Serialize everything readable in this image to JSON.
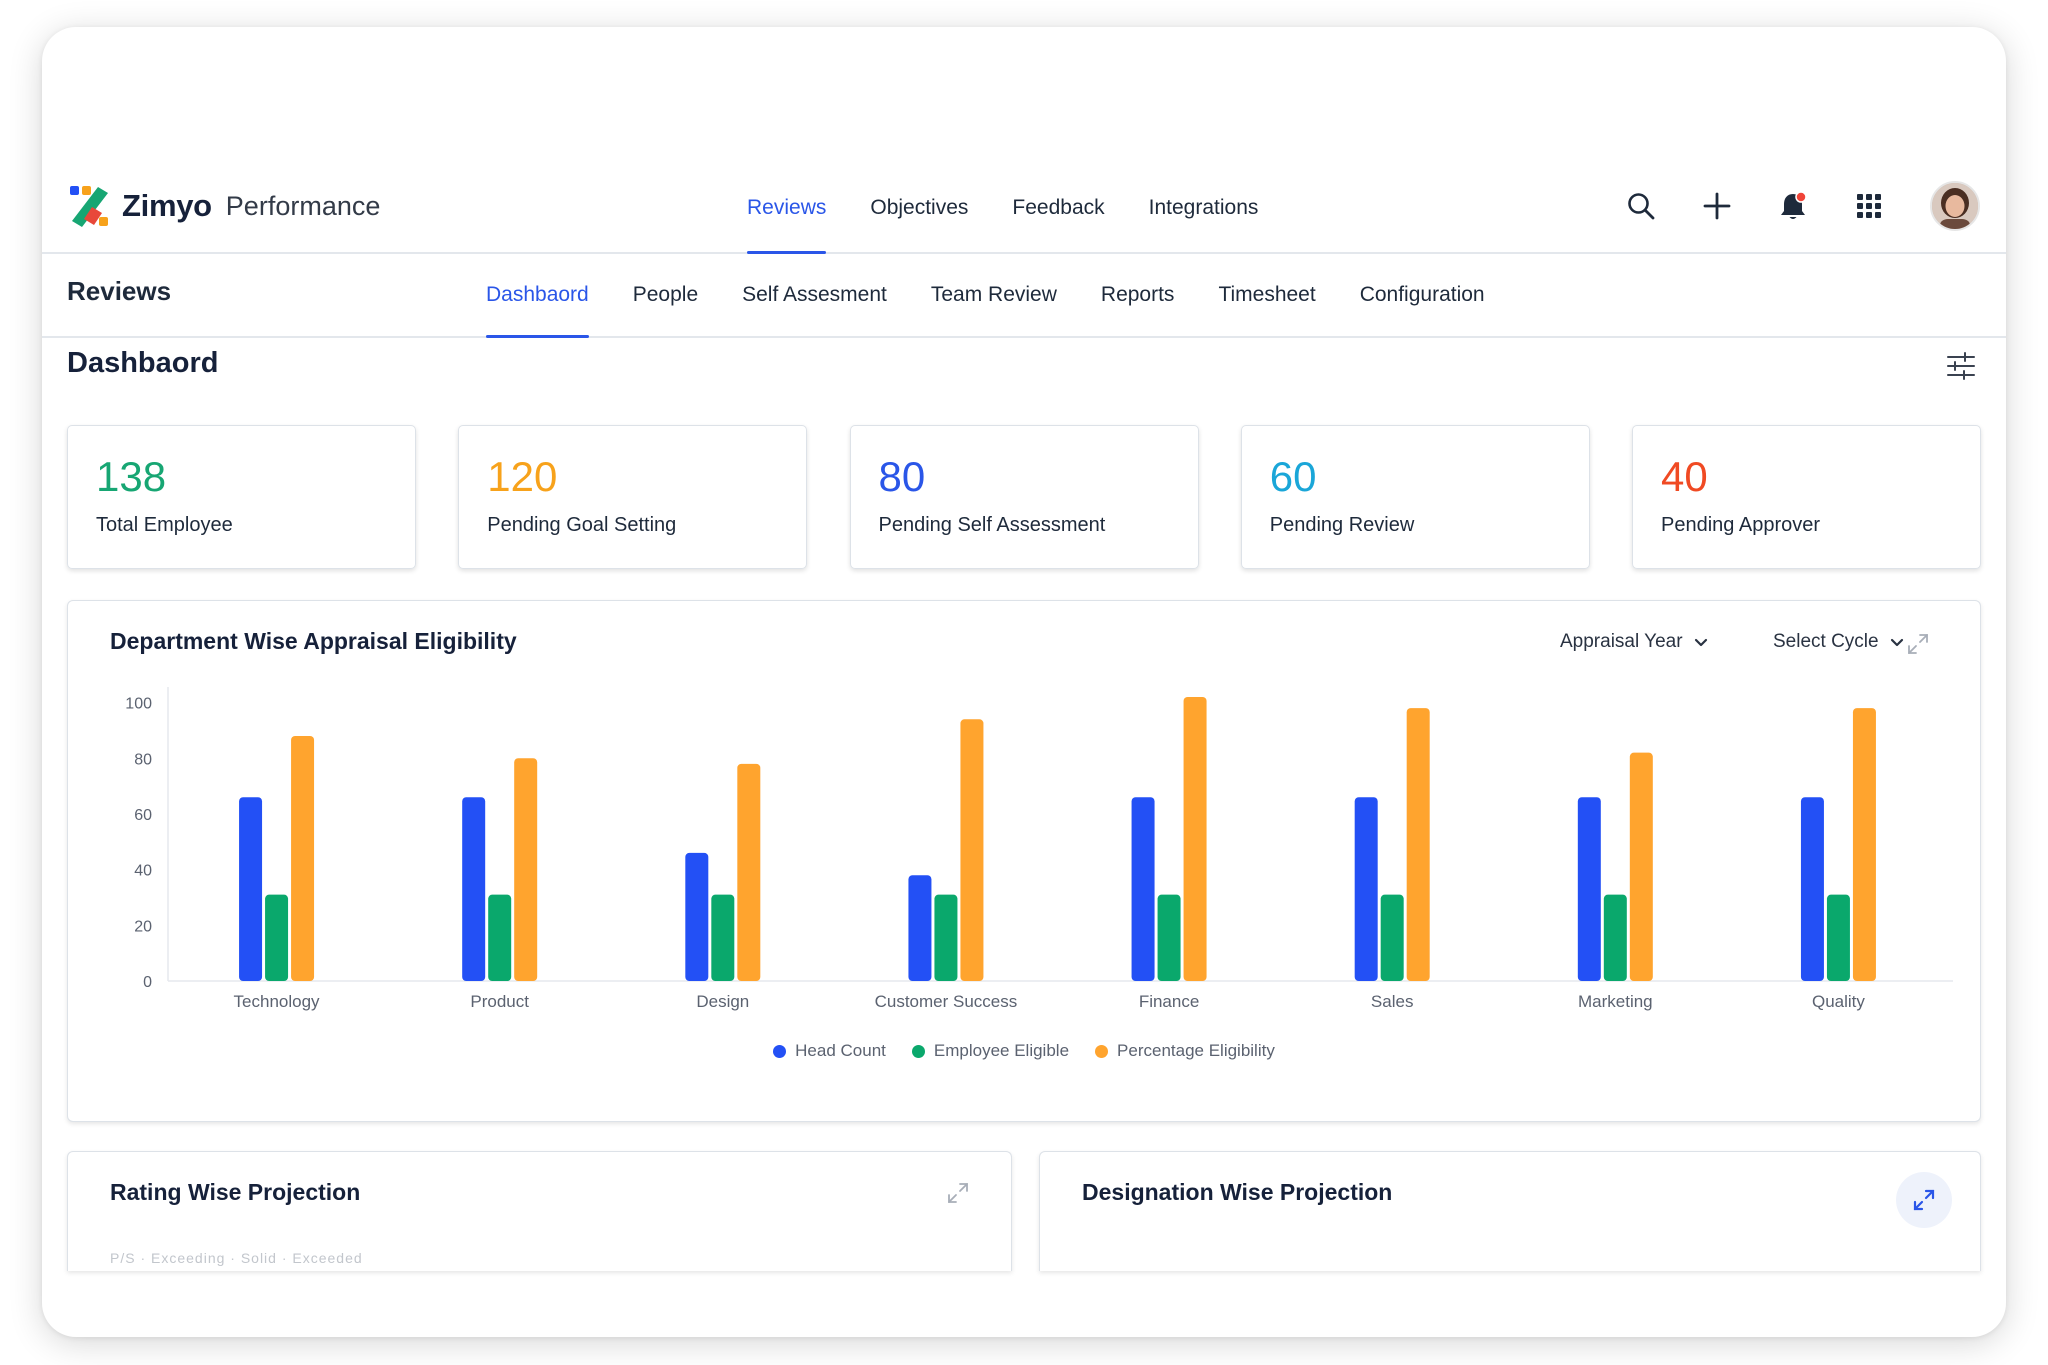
{
  "app": {
    "brand": "Zimyo",
    "product": "Performance"
  },
  "top_tabs": [
    {
      "label": "Reviews",
      "active": true
    },
    {
      "label": "Objectives",
      "active": false
    },
    {
      "label": "Feedback",
      "active": false
    },
    {
      "label": "Integrations",
      "active": false
    }
  ],
  "top_icons": [
    "search-icon",
    "plus-icon",
    "bell-icon",
    "apps-grid-icon"
  ],
  "colors": {
    "accent": "#2a56e8",
    "blue": "#2350f5",
    "green": "#0aa86c",
    "orange": "#ffa42e",
    "notification": "#f04438"
  },
  "subnav": {
    "title": "Reviews",
    "tabs": [
      {
        "label": "Dashbaord",
        "active": true
      },
      {
        "label": "People",
        "active": false
      },
      {
        "label": "Self Assesment",
        "active": false
      },
      {
        "label": "Team Review",
        "active": false
      },
      {
        "label": "Reports",
        "active": false
      },
      {
        "label": "Timesheet",
        "active": false
      },
      {
        "label": "Configuration",
        "active": false
      }
    ]
  },
  "dashboard": {
    "title": "Dashbaord",
    "cards": [
      {
        "value": "138",
        "label": "Total Employee",
        "color": "#17a673"
      },
      {
        "value": "120",
        "label": "Pending Goal Setting",
        "color": "#f7a21b"
      },
      {
        "value": "80",
        "label": "Pending Self Assessment",
        "color": "#2a56e8"
      },
      {
        "value": "60",
        "label": "Pending Review",
        "color": "#1aa6d8"
      },
      {
        "value": "40",
        "label": "Pending Approver",
        "color": "#f04a23"
      }
    ]
  },
  "dept_panel": {
    "title": "Department Wise Appraisal Eligibility",
    "filters": {
      "year": "Appraisal Year",
      "cycle": "Select Cycle"
    }
  },
  "chart_data": {
    "type": "bar",
    "categories": [
      "Technology",
      "Product",
      "Design",
      "Customer Success",
      "Finance",
      "Sales",
      "Marketing",
      "Quality"
    ],
    "series": [
      {
        "name": "Head Count",
        "color": "#2350f5",
        "values": [
          66,
          66,
          46,
          38,
          66,
          66,
          66,
          66
        ]
      },
      {
        "name": "Employee Eligible",
        "color": "#0aa86c",
        "values": [
          31,
          31,
          31,
          31,
          31,
          31,
          31,
          31
        ]
      },
      {
        "name": "Percentage Eligibility",
        "color": "#ffa42e",
        "values": [
          88,
          80,
          78,
          94,
          102,
          98,
          82,
          98
        ]
      }
    ],
    "yticks": [
      0,
      20,
      40,
      60,
      80,
      100
    ],
    "ylim": [
      0,
      102
    ],
    "legend_position": "bottom",
    "grid": false
  },
  "bottom_panels": {
    "rating_title": "Rating Wise Projection",
    "rating_faint": "P/S · Exceeding · Solid · Exceeded",
    "designation_title": "Designation Wise Projection"
  }
}
